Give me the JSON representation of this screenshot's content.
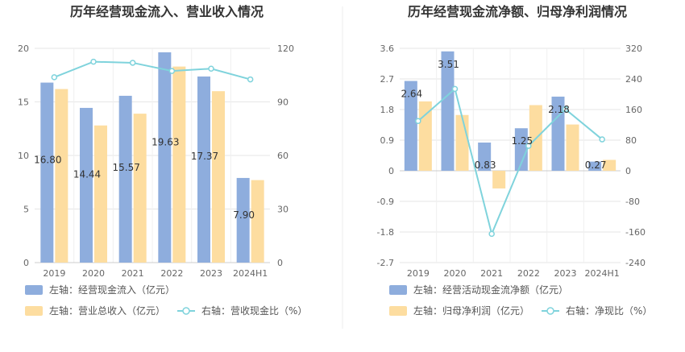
{
  "chart_data": [
    {
      "type": "bar",
      "title": "历年经营现金流入、营业收入情况",
      "categories": [
        "2019",
        "2020",
        "2021",
        "2022",
        "2023",
        "2024H1"
      ],
      "y_left": {
        "ylim": [
          0,
          20
        ],
        "ticks": [
          "0",
          "5",
          "10",
          "15",
          "20"
        ]
      },
      "y_right": {
        "ylim": [
          0,
          120
        ],
        "ticks": [
          "0",
          "30",
          "60",
          "90",
          "120"
        ]
      },
      "series": [
        {
          "name": "左轴：经营现金流入（亿元）",
          "kind": "bar",
          "axis": "left",
          "color": "#8eaddd",
          "values": [
            16.8,
            14.44,
            15.57,
            19.63,
            17.37,
            7.9
          ],
          "labels": [
            "16.80",
            "14.44",
            "15.57",
            "19.63",
            "17.37",
            "7.90"
          ]
        },
        {
          "name": "左轴：营业总收入（亿元）",
          "kind": "bar",
          "axis": "left",
          "color": "#fddda0",
          "values": [
            16.2,
            12.8,
            13.9,
            18.3,
            16.0,
            7.7
          ]
        },
        {
          "name": "右轴：营收现金比（%）",
          "kind": "line",
          "axis": "right",
          "color": "#7fd3dc",
          "values": [
            103.8,
            112.5,
            111.9,
            107.3,
            108.6,
            102.6
          ]
        }
      ],
      "grid": true,
      "legend_position": "bottom-left"
    },
    {
      "type": "bar",
      "title": "历年经营现金流净额、归母净利润情况",
      "categories": [
        "2019",
        "2020",
        "2021",
        "2022",
        "2023",
        "2024H1"
      ],
      "y_left": {
        "ylim": [
          -2.7,
          3.6
        ],
        "ticks": [
          "-2.7",
          "-1.8",
          "-0.9",
          "0",
          "0.9",
          "1.8",
          "2.7",
          "3.6"
        ]
      },
      "y_right": {
        "ylim": [
          -240,
          320
        ],
        "ticks": [
          "-240",
          "-160",
          "-80",
          "0",
          "80",
          "160",
          "240",
          "320"
        ]
      },
      "series": [
        {
          "name": "左轴：经营活动现金流净额（亿元）",
          "kind": "bar",
          "axis": "left",
          "color": "#8eaddd",
          "values": [
            2.64,
            3.51,
            0.83,
            1.25,
            2.18,
            0.27
          ],
          "labels": [
            "2.64",
            "3.51",
            "0.83",
            "1.25",
            "2.18",
            "0.27"
          ]
        },
        {
          "name": "左轴：归母净利润（亿元）",
          "kind": "bar",
          "axis": "left",
          "color": "#fddda0",
          "values": [
            2.04,
            1.64,
            -0.52,
            1.93,
            1.36,
            0.32
          ]
        },
        {
          "name": "右轴：净现比（%）",
          "kind": "line",
          "axis": "right",
          "color": "#7fd3dc",
          "values": [
            130,
            214,
            -165,
            65,
            161,
            82
          ]
        }
      ],
      "grid": true,
      "legend_position": "bottom-left"
    }
  ]
}
